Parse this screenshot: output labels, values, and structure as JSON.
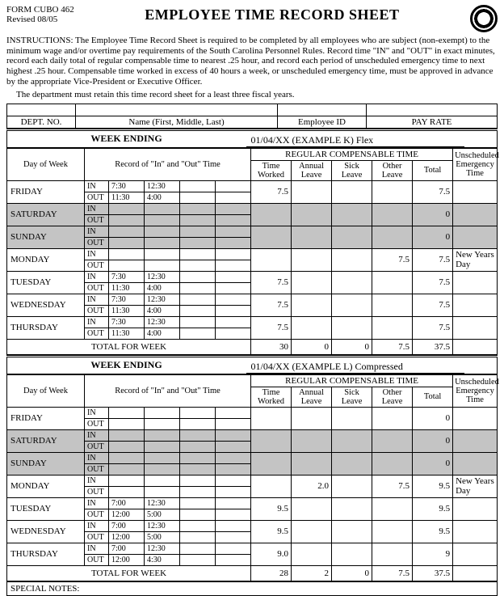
{
  "form_id_line1": "FORM CUBO 462",
  "form_id_line2": "Revised 08/05",
  "title": "EMPLOYEE TIME RECORD SHEET",
  "instructions": "INSTRUCTIONS: The Employee Time Record Sheet is required to be completed by all employees who are subject (non-exempt) to the minimum wage and/or overtime pay requirements of the South Carolina Personnel Rules. Record time \"IN\" and \"OUT\" in exact minutes, record each daily total of regular compensable time to nearest .25 hour, and record each period of unscheduled emergency time to next highest .25 hour. Compensable time worked in excess of 40 hours a week, or unscheduled emergency time, must be approved in advance by the appropriate Vice-President or Executive Officer.",
  "retain": "The department must retain this time record sheet for a least three fiscal years.",
  "labels": {
    "dept_no": "DEPT. NO.",
    "name": "Name (First, Middle, Last)",
    "emp_id": "Employee ID",
    "pay_rate": "PAY RATE",
    "week_ending": "WEEK ENDING",
    "day_of_week": "Day of Week",
    "record_io": "Record of \"In\" and \"Out\" Time",
    "reg_comp": "REGULAR COMPENSABLE TIME",
    "time_worked": "Time Worked",
    "annual_leave": "Annual Leave",
    "sick_leave": "Sick Leave",
    "other_leave": "Other Leave",
    "total": "Total",
    "unsched": "Unscheduled Emergency Time",
    "total_week": "TOTAL FOR WEEK",
    "in": "IN",
    "out": "OUT",
    "special_notes": "SPECIAL NOTES:"
  },
  "week1": {
    "ending": "01/04/XX (EXAMPLE K) Flex",
    "days": [
      {
        "name": "FRIDAY",
        "shade": false,
        "in": [
          "7:30",
          "12:30"
        ],
        "out": [
          "11:30",
          "4:00"
        ],
        "tw": "7.5",
        "al": "",
        "sl": "",
        "ol": "",
        "tot": "7.5",
        "note": ""
      },
      {
        "name": "SATURDAY",
        "shade": true,
        "in": [
          "",
          ""
        ],
        "out": [
          "",
          ""
        ],
        "tw": "",
        "al": "",
        "sl": "",
        "ol": "",
        "tot": "0",
        "note": ""
      },
      {
        "name": "SUNDAY",
        "shade": true,
        "in": [
          "",
          ""
        ],
        "out": [
          "",
          ""
        ],
        "tw": "",
        "al": "",
        "sl": "",
        "ol": "",
        "tot": "0",
        "note": ""
      },
      {
        "name": "MONDAY",
        "shade": false,
        "in": [
          "",
          ""
        ],
        "out": [
          "",
          ""
        ],
        "tw": "",
        "al": "",
        "sl": "",
        "ol": "7.5",
        "tot": "7.5",
        "note": "New Years Day"
      },
      {
        "name": "TUESDAY",
        "shade": false,
        "in": [
          "7:30",
          "12:30"
        ],
        "out": [
          "11:30",
          "4:00"
        ],
        "tw": "7.5",
        "al": "",
        "sl": "",
        "ol": "",
        "tot": "7.5",
        "note": ""
      },
      {
        "name": "WEDNESDAY",
        "shade": false,
        "in": [
          "7:30",
          "12:30"
        ],
        "out": [
          "11:30",
          "4:00"
        ],
        "tw": "7.5",
        "al": "",
        "sl": "",
        "ol": "",
        "tot": "7.5",
        "note": ""
      },
      {
        "name": "THURSDAY",
        "shade": false,
        "in": [
          "7:30",
          "12:30"
        ],
        "out": [
          "11:30",
          "4:00"
        ],
        "tw": "7.5",
        "al": "",
        "sl": "",
        "ol": "",
        "tot": "7.5",
        "note": ""
      }
    ],
    "totals": {
      "tw": "30",
      "al": "0",
      "sl": "0",
      "ol": "7.5",
      "tot": "37.5",
      "note": ""
    }
  },
  "week2": {
    "ending": "01/04/XX (EXAMPLE L) Compressed",
    "days": [
      {
        "name": "FRIDAY",
        "shade": false,
        "in": [
          "",
          ""
        ],
        "out": [
          "",
          ""
        ],
        "tw": "",
        "al": "",
        "sl": "",
        "ol": "",
        "tot": "0",
        "note": ""
      },
      {
        "name": "SATURDAY",
        "shade": true,
        "in": [
          "",
          ""
        ],
        "out": [
          "",
          ""
        ],
        "tw": "",
        "al": "",
        "sl": "",
        "ol": "",
        "tot": "0",
        "note": ""
      },
      {
        "name": "SUNDAY",
        "shade": true,
        "in": [
          "",
          ""
        ],
        "out": [
          "",
          ""
        ],
        "tw": "",
        "al": "",
        "sl": "",
        "ol": "",
        "tot": "0",
        "note": ""
      },
      {
        "name": "MONDAY",
        "shade": false,
        "in": [
          "",
          ""
        ],
        "out": [
          "",
          ""
        ],
        "tw": "",
        "al": "2.0",
        "sl": "",
        "ol": "7.5",
        "tot": "9.5",
        "note": "New Years Day"
      },
      {
        "name": "TUESDAY",
        "shade": false,
        "in": [
          "7:00",
          "12:30"
        ],
        "out": [
          "12:00",
          "5:00"
        ],
        "tw": "9.5",
        "al": "",
        "sl": "",
        "ol": "",
        "tot": "9.5",
        "note": ""
      },
      {
        "name": "WEDNESDAY",
        "shade": false,
        "in": [
          "7:00",
          "12:30"
        ],
        "out": [
          "12:00",
          "5:00"
        ],
        "tw": "9.5",
        "al": "",
        "sl": "",
        "ol": "",
        "tot": "9.5",
        "note": ""
      },
      {
        "name": "THURSDAY",
        "shade": false,
        "in": [
          "7:00",
          "12:30"
        ],
        "out": [
          "12:00",
          "4:30"
        ],
        "tw": "9.0",
        "al": "",
        "sl": "",
        "ol": "",
        "tot": "9",
        "note": ""
      }
    ],
    "totals": {
      "tw": "28",
      "al": "2",
      "sl": "0",
      "ol": "7.5",
      "tot": "37.5",
      "note": ""
    }
  }
}
